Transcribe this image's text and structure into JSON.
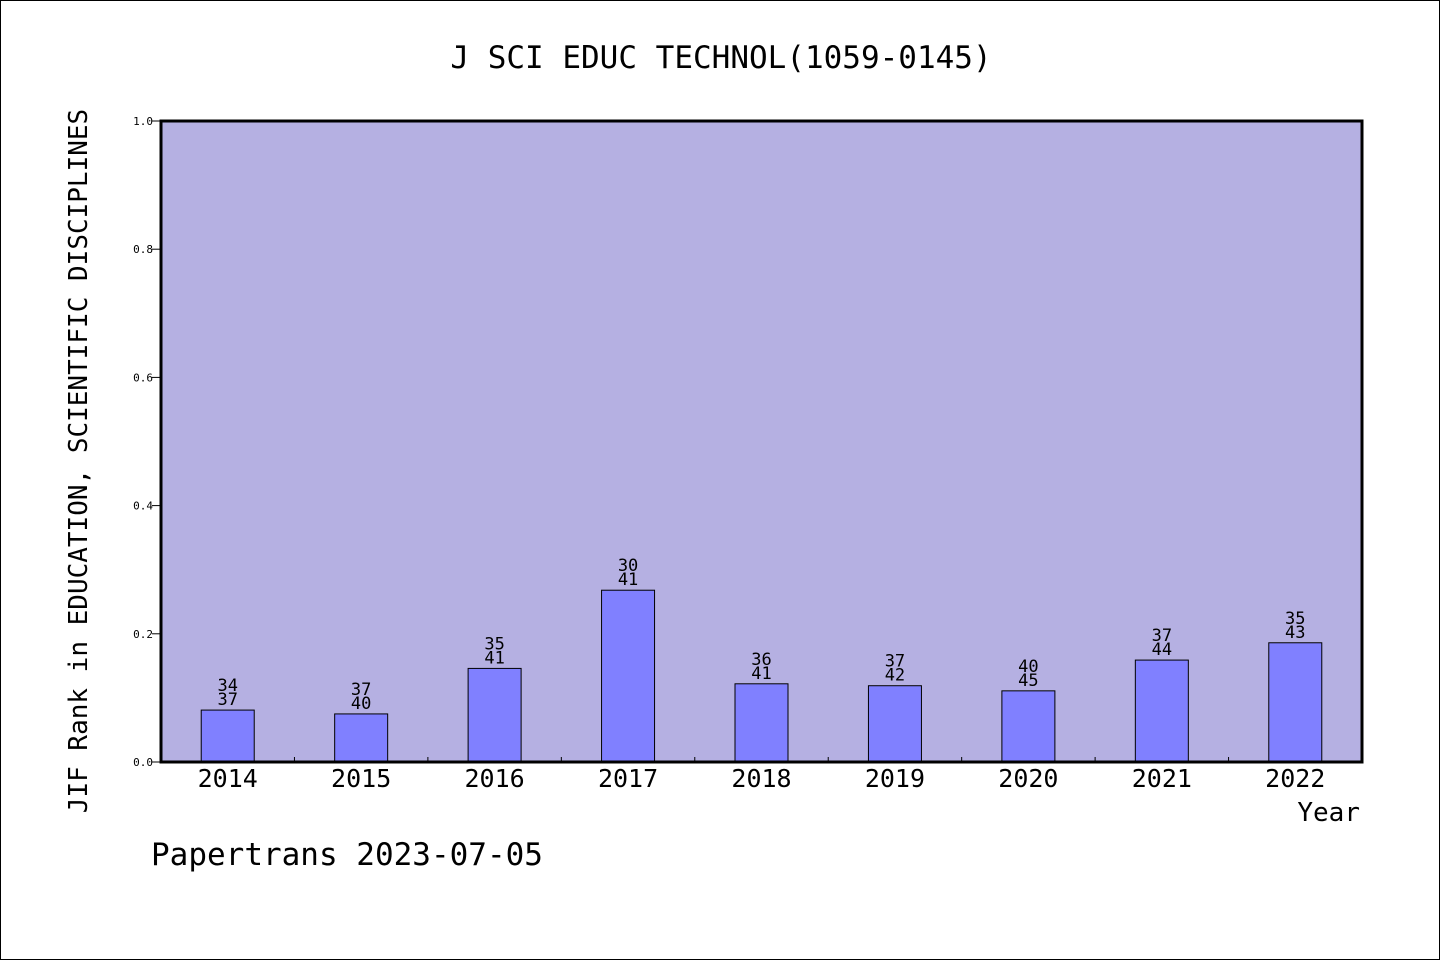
{
  "chart_data": {
    "type": "bar",
    "title": "J SCI EDUC TECHNOL(1059-0145)",
    "xlabel": "Year",
    "ylabel": "JIF Rank in EDUCATION, SCIENTIFIC DISCIPLINES",
    "ylim": [
      0,
      1.0
    ],
    "yticks": [
      "0.0",
      "0.2",
      "0.4",
      "0.6",
      "0.8",
      "1.0"
    ],
    "grid": false,
    "categories": [
      "2014",
      "2015",
      "2016",
      "2017",
      "2018",
      "2019",
      "2020",
      "2021",
      "2022"
    ],
    "values": [
      0.081,
      0.075,
      0.146,
      0.268,
      0.122,
      0.119,
      0.111,
      0.159,
      0.186
    ],
    "rank_labels": [
      [
        "34",
        "37"
      ],
      [
        "37",
        "40"
      ],
      [
        "35",
        "41"
      ],
      [
        "30",
        "41"
      ],
      [
        "36",
        "41"
      ],
      [
        "37",
        "42"
      ],
      [
        "40",
        "45"
      ],
      [
        "37",
        "44"
      ],
      [
        "35",
        "43"
      ]
    ],
    "colors": {
      "plot_background": "#b5b0e2",
      "bar_fill": "#8080ff",
      "bar_stroke": "#000000"
    }
  },
  "footer": "Papertrans 2023-07-05"
}
